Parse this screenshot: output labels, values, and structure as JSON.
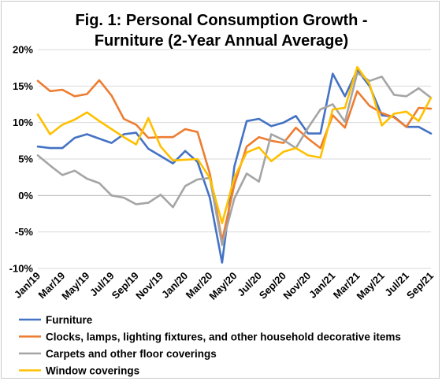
{
  "chart_data": {
    "type": "line",
    "title": "Fig. 1: Personal Consumption Growth - Furniture (2-Year Annual Average)",
    "title_lines": [
      "Fig. 1: Personal Consumption Growth -",
      "Furniture (2-Year Annual Average)"
    ],
    "xlabel": "",
    "ylabel": "",
    "ylim": [
      -10,
      20
    ],
    "yticks": [
      -10,
      -5,
      0,
      5,
      10,
      15,
      20
    ],
    "ytick_labels": [
      "-10%",
      "-5%",
      "0%",
      "5%",
      "10%",
      "15%",
      "20%"
    ],
    "y_format": "percent",
    "grid": "horizontal",
    "legend_position": "bottom",
    "x": [
      "Jan/19",
      "Feb/19",
      "Mar/19",
      "Apr/19",
      "May/19",
      "Jun/19",
      "Jul/19",
      "Aug/19",
      "Sep/19",
      "Oct/19",
      "Nov/19",
      "Dec/19",
      "Jan/20",
      "Feb/20",
      "Mar/20",
      "Apr/20",
      "May/20",
      "Jun/20",
      "Jul/20",
      "Aug/20",
      "Sep/20",
      "Oct/20",
      "Nov/20",
      "Dec/20",
      "Jan/21",
      "Feb/21",
      "Mar/21",
      "Apr/21",
      "May/21",
      "Jun/21",
      "Jul/21",
      "Aug/21",
      "Sep/21"
    ],
    "x_tick_labels": [
      "Jan/19",
      "Mar/19",
      "May/19",
      "Jul/19",
      "Sep/19",
      "Nov/19",
      "Jan/20",
      "Mar/20",
      "May/20",
      "Jul/20",
      "Sep/20",
      "Nov/20",
      "Jan/21",
      "Mar/21",
      "May/21",
      "Jul/21",
      "Sep/21"
    ],
    "series": [
      {
        "name": "Furniture",
        "color": "#4472C4",
        "values": [
          6.7,
          6.5,
          6.5,
          7.9,
          8.4,
          7.8,
          7.2,
          8.4,
          8.6,
          6.4,
          5.4,
          4.4,
          6.1,
          4.6,
          -0.3,
          -9.2,
          4.0,
          10.2,
          10.5,
          9.5,
          10.0,
          10.9,
          8.5,
          8.5,
          16.7,
          13.6,
          17.2,
          15.0,
          11.0,
          10.8,
          9.4,
          9.4,
          8.5
        ]
      },
      {
        "name": "Clocks, lamps, lighting fixtures, and other household decorative items",
        "color": "#ED7D31",
        "values": [
          15.7,
          14.3,
          14.5,
          13.6,
          13.9,
          15.8,
          13.7,
          10.5,
          9.7,
          7.9,
          8.0,
          8.0,
          9.1,
          8.7,
          3.0,
          -6.2,
          1.5,
          6.7,
          8.0,
          7.5,
          7.2,
          9.3,
          7.8,
          6.5,
          11.0,
          9.3,
          14.3,
          12.3,
          11.3,
          10.7,
          9.4,
          12.0,
          11.9
        ]
      },
      {
        "name": "Carpets and other floor coverings",
        "color": "#A5A5A5",
        "values": [
          5.5,
          4.1,
          2.8,
          3.4,
          2.3,
          1.7,
          0.0,
          -0.3,
          -1.2,
          -1.0,
          0.1,
          -1.6,
          1.3,
          2.2,
          2.4,
          -6.8,
          -0.4,
          3.0,
          1.9,
          8.4,
          7.6,
          6.5,
          9.3,
          11.8,
          12.5,
          10.1,
          16.8,
          15.7,
          16.3,
          13.8,
          13.6,
          14.7,
          13.4
        ]
      },
      {
        "name": "Window coverings",
        "color": "#FFC000",
        "values": [
          11.1,
          8.4,
          9.7,
          10.4,
          11.4,
          10.2,
          9.1,
          8.0,
          7.0,
          10.6,
          6.7,
          4.8,
          4.9,
          5.0,
          2.4,
          -3.8,
          2.5,
          5.9,
          6.6,
          4.7,
          6.0,
          6.5,
          5.5,
          5.2,
          11.8,
          12.0,
          17.6,
          15.3,
          9.6,
          11.2,
          11.5,
          10.2,
          13.4
        ]
      }
    ]
  }
}
